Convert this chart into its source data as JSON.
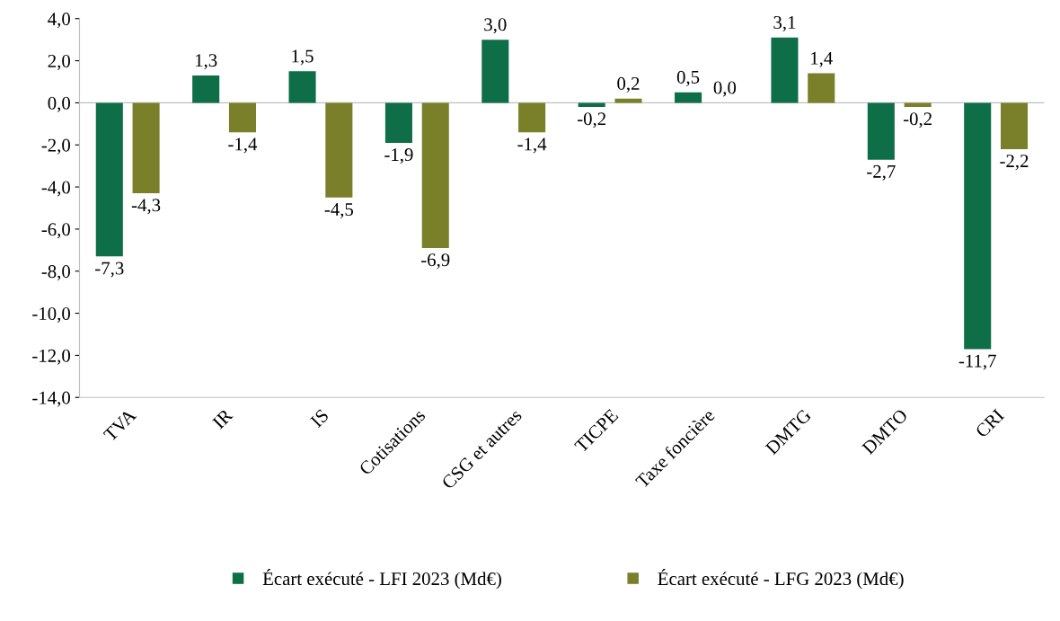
{
  "chart_data": {
    "type": "bar",
    "categories": [
      "TVA",
      "IR",
      "IS",
      "Cotisations",
      "CSG et autres",
      "TICPE",
      "Taxe foncière",
      "DMTG",
      "DMTO",
      "CRI"
    ],
    "series": [
      {
        "name": "Écart exécuté - LFI 2023 (Md€)",
        "color": "#0e6e47",
        "values": [
          -7.3,
          1.3,
          1.5,
          -1.9,
          3.0,
          -0.2,
          0.5,
          3.1,
          -2.7,
          -11.7
        ],
        "value_labels": [
          "-7,3",
          "1,3",
          "1,5",
          "-1,9",
          "3,0",
          "-0,2",
          "0,5",
          "3,1",
          "-2,7",
          "-11,7"
        ]
      },
      {
        "name": "Écart exécuté - LFG 2023 (Md€)",
        "color": "#7a7f2a",
        "values": [
          -4.3,
          -1.4,
          -4.5,
          -6.9,
          -1.4,
          0.2,
          0.0,
          1.4,
          -0.2,
          -2.2
        ],
        "value_labels": [
          "-4,3",
          "-1,4",
          "-4,5",
          "-6,9",
          "-1,4",
          "0,2",
          "0,0",
          "1,4",
          "-0,2",
          "-2,2"
        ]
      }
    ],
    "ylim": [
      -14,
      4
    ],
    "yticks": [
      {
        "value": 4,
        "label": "4,0"
      },
      {
        "value": 2,
        "label": "2,0"
      },
      {
        "value": 0,
        "label": "0,0"
      },
      {
        "value": -2,
        "label": "-2,0"
      },
      {
        "value": -4,
        "label": "-4,0"
      },
      {
        "value": -6,
        "label": "-6,0"
      },
      {
        "value": -8,
        "label": "-8,0"
      },
      {
        "value": -10,
        "label": "-10,0"
      },
      {
        "value": -12,
        "label": "-12,0"
      },
      {
        "value": -14,
        "label": "-14,0"
      }
    ],
    "ref_lines": [
      {
        "axis": "y",
        "value": 0,
        "color": "#bfbfbf"
      }
    ],
    "grid": false,
    "legend": "bottom"
  }
}
